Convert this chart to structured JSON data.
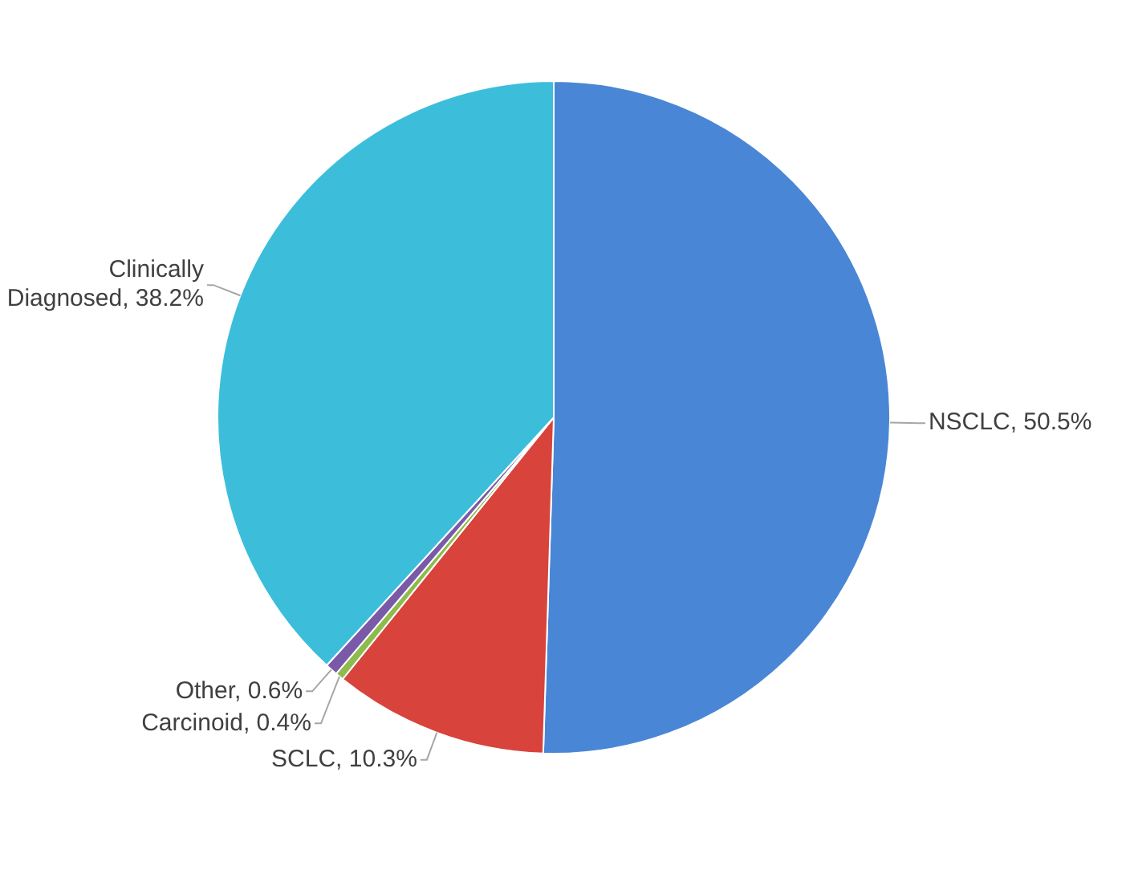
{
  "chart_data": {
    "type": "pie",
    "categories": [
      "NSCLC",
      "SCLC",
      "Carcinoid",
      "Other",
      "Clinically Diagnosed"
    ],
    "values": [
      50.5,
      10.3,
      0.4,
      0.6,
      38.2
    ],
    "value_labels": [
      "50.5%",
      "10.3%",
      "0.4%",
      "0.6%",
      "38.2%"
    ],
    "colors": [
      "#4a86d6",
      "#d8433c",
      "#8dbb4c",
      "#7a5aa8",
      "#3cbedb"
    ],
    "legend": false
  }
}
